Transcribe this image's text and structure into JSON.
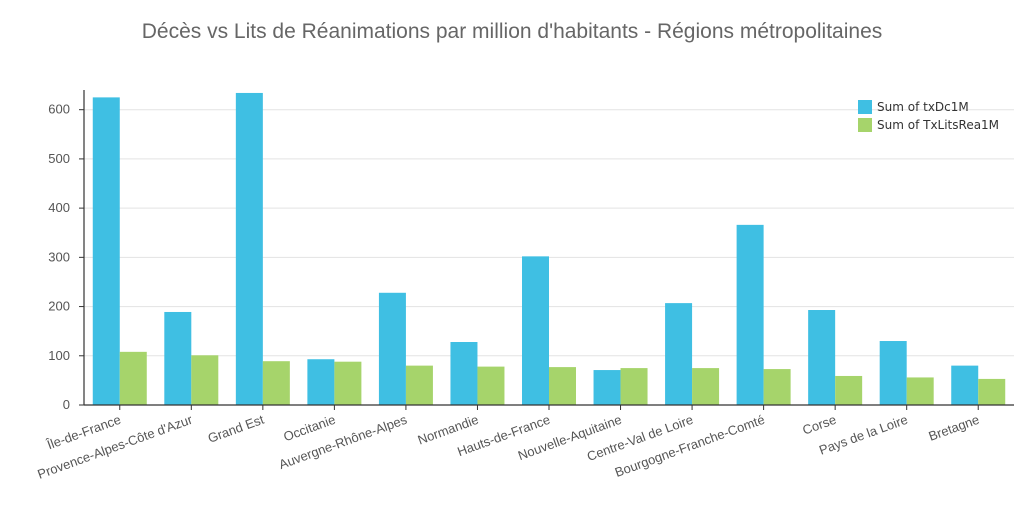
{
  "chart_data": {
    "type": "bar",
    "title": "Décès vs Lits de Réanimations par million d'habitants - Régions métropolitaines",
    "xlabel": "",
    "ylabel": "",
    "ylim": [
      0,
      640
    ],
    "yticks": [
      0,
      100,
      200,
      300,
      400,
      500,
      600
    ],
    "grid": true,
    "legend_position": "top-right",
    "categories": [
      "Île-de-France",
      "Provence-Alpes-Côte d'Azur",
      "Grand Est",
      "Occitanie",
      "Auvergne-Rhône-Alpes",
      "Normandie",
      "Hauts-de-France",
      "Nouvelle-Aquitaine",
      "Centre-Val de Loire",
      "Bourgogne-Franche-Comté",
      "Corse",
      "Pays de la Loire",
      "Bretagne"
    ],
    "series": [
      {
        "name": "Sum of txDc1M",
        "color": "#3fbfe3",
        "values": [
          625,
          189,
          634,
          93,
          228,
          128,
          302,
          71,
          207,
          366,
          193,
          130,
          80
        ]
      },
      {
        "name": "Sum of TxLitsRea1M",
        "color": "#a6d46b",
        "values": [
          108,
          101,
          89,
          88,
          80,
          78,
          77,
          75,
          75,
          73,
          59,
          56,
          53
        ]
      }
    ]
  }
}
